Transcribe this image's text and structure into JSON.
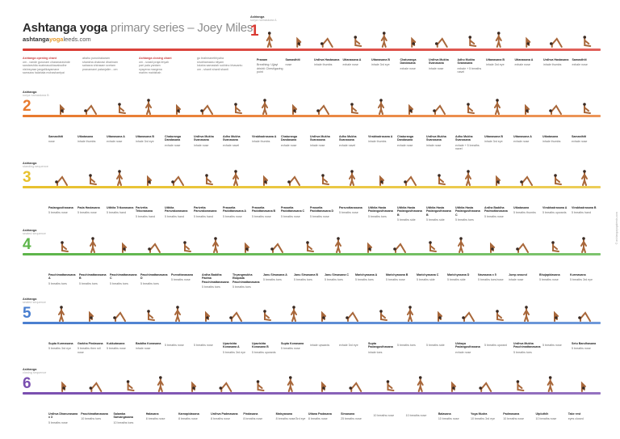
{
  "header": {
    "title_main": "Ashtanga yoga ",
    "title_accent": "primary series – Joey Miles",
    "site_a": "ashtanga",
    "site_b": "yoga",
    "site_c": "leeds.com"
  },
  "chants": [
    {
      "title": "Ashtanga opening chant",
      "lines": [
        "om - vande gurunam charanaravinde",
        "sandarshita svatmasukhavabodhe",
        "nishreyase jangalikayamane",
        "samsara halahala mohashantyai"
      ]
    },
    {
      "title": "",
      "lines": [
        "abahu purushakaram",
        "shankha chakrasi dharinam",
        "sahasra shirasam svetam",
        "pranamami patanjalim - om"
      ]
    },
    {
      "title": "Ashtanga closing chant",
      "lines": [
        "om - svasti praja bhyah",
        "pari pala yantam",
        "nyayena margena",
        "mahim mahishah"
      ]
    },
    {
      "title": "",
      "lines": [
        "go brahmanebhyaha",
        "shubhamastu nityam",
        "lokaha samastah sukhino bhavantu",
        "om - shanti shanti shanti"
      ]
    }
  ],
  "sections": [
    {
      "number": "1",
      "label": "Ashtanga",
      "sub": "surya namaskara A",
      "color": "#d93a32",
      "poses": [
        {
          "name": "Pranam",
          "breath": "Breathing: Ujjayi drishti: Chest/gazing point"
        },
        {
          "name": "Samasthiti",
          "breath": "nose"
        },
        {
          "name": "Urdhva Hastasana",
          "breath": "inhale thumbs"
        },
        {
          "name": "Uttanasana A",
          "breath": "exhale nose"
        },
        {
          "name": "Uttanasana B",
          "breath": "inhale 3rd eye"
        },
        {
          "name": "Chaturanga Dandasana",
          "breath": "exhale nose"
        },
        {
          "name": "Urdhva Mukha Svanasana",
          "breath": "inhale nose"
        },
        {
          "name": "Adho Mukha Svanasana",
          "breath": "exhale + 5 breaths navel"
        },
        {
          "name": "Uttanasana B",
          "breath": "inhale 3rd eye"
        },
        {
          "name": "Uttanasana A",
          "breath": "exhale nose"
        },
        {
          "name": "Urdhva Hastasana",
          "breath": "inhale thumbs"
        },
        {
          "name": "Samasthiti",
          "breath": "exhale nose"
        }
      ]
    },
    {
      "number": "2",
      "label": "Ashtanga",
      "sub": "surya namaskara B",
      "color": "#e87a2e",
      "poses": [
        {
          "name": "Samasthiti",
          "breath": "nose"
        },
        {
          "name": "Utkatasana",
          "breath": "inhale thumbs"
        },
        {
          "name": "Uttanasana A",
          "breath": "exhale nose"
        },
        {
          "name": "Uttanasana B",
          "breath": "inhale 3rd eye"
        },
        {
          "name": "Chaturanga Dandasana",
          "breath": "exhale nose"
        },
        {
          "name": "Urdhva Mukha Svanasana",
          "breath": "inhale nose"
        },
        {
          "name": "Adho Mukha Svanasana",
          "breath": "exhale navel"
        },
        {
          "name": "Virabhadrasana A",
          "breath": "inhale thumbs"
        },
        {
          "name": "Chaturanga Dandasana",
          "breath": "exhale nose"
        },
        {
          "name": "Urdhva Mukha Svanasana",
          "breath": "inhale nose"
        },
        {
          "name": "Adho Mukha Svanasana",
          "breath": "exhale navel"
        },
        {
          "name": "Virabhadrasana A",
          "breath": "inhale thumbs"
        },
        {
          "name": "Chaturanga Dandasana",
          "breath": "exhale nose"
        },
        {
          "name": "Urdhva Mukha Svanasana",
          "breath": "inhale nose"
        },
        {
          "name": "Adho Mukha Svanasana",
          "breath": "exhale + 5 breaths navel"
        },
        {
          "name": "Uttanasana B",
          "breath": "inhale 3rd eye"
        },
        {
          "name": "Uttanasana A",
          "breath": "exhale nose"
        },
        {
          "name": "Utkatasana",
          "breath": "inhale thumbs"
        },
        {
          "name": "Samasthiti",
          "breath": "exhale nose"
        }
      ]
    },
    {
      "number": "3",
      "label": "Ashtanga",
      "sub": "standing sequence",
      "color": "#e8c12e",
      "poses": [
        {
          "name": "Padangusthasana",
          "breath": "5 breaths nose"
        },
        {
          "name": "Pada Hastasana",
          "breath": "5 breaths nose"
        },
        {
          "name": "Utthita Trikonasana",
          "breath": "5 breaths hand"
        },
        {
          "name": "Parivrtta Trikonasana",
          "breath": "5 breaths hand"
        },
        {
          "name": "Utthita Parsvakonasana",
          "breath": "5 breaths hand"
        },
        {
          "name": "Parivrtta Parsvakonasana",
          "breath": "5 breaths hand"
        },
        {
          "name": "Prasarita Padottanasana A",
          "breath": "5 breaths nose"
        },
        {
          "name": "Prasarita Padottanasana B",
          "breath": "5 breaths nose"
        },
        {
          "name": "Prasarita Padottanasana C",
          "breath": "5 breaths nose"
        },
        {
          "name": "Prasarita Padottanasana D",
          "breath": "5 breaths nose"
        },
        {
          "name": "Parsvottanasana",
          "breath": "5 breaths nose"
        },
        {
          "name": "Utthita Hasta Padangusthasana",
          "breath": "5 breaths toes"
        },
        {
          "name": "Utthita Hasta Padangusthasana B",
          "breath": "5 breaths side"
        },
        {
          "name": "Utthita Hasta Padangusthasana B",
          "breath": "5 breaths side"
        },
        {
          "name": "Utthita Hasta Padangusthasana C",
          "breath": "5 breaths toes"
        },
        {
          "name": "Ardha Baddha Padmottanasana",
          "breath": "5 breaths nose"
        },
        {
          "name": "Utkatasana",
          "breath": "5 breaths thumbs"
        },
        {
          "name": "Virabhadrasana A",
          "breath": "5 breaths upwards"
        },
        {
          "name": "Virabhadrasana B",
          "breath": "5 breaths hand"
        }
      ]
    },
    {
      "number": "4",
      "label": "Ashtanga",
      "sub": "seated sequence",
      "color": "#5db54a",
      "poses": [
        {
          "name": "Paschimattanasana A",
          "breath": "5 breaths toes"
        },
        {
          "name": "Paschimattanasana B",
          "breath": "5 breaths toes"
        },
        {
          "name": "Paschimattanasana C",
          "breath": "5 breaths toes"
        },
        {
          "name": "Paschimattanasana D",
          "breath": "5 breaths toes"
        },
        {
          "name": "Purvottanasana",
          "breath": "5 breaths nose"
        },
        {
          "name": "Ardha Baddha Padma Paschimattanasana",
          "breath": "5 breaths toes"
        },
        {
          "name": "Tiryangmukha Ekapada Paschimattanasana",
          "breath": "5 breaths toes"
        },
        {
          "name": "Janu Sirsasana A",
          "breath": "5 breaths toes"
        },
        {
          "name": "Janu Sirsasana B",
          "breath": "5 breaths toes"
        },
        {
          "name": "Janu Sirsasana C",
          "breath": "5 breaths toes"
        },
        {
          "name": "Marichyasana A",
          "breath": "5 breaths toes"
        },
        {
          "name": "Marichyasana B",
          "breath": "5 breaths nose"
        },
        {
          "name": "Marichyasana C",
          "breath": "5 breaths side"
        },
        {
          "name": "Marichyasana D",
          "breath": "5 breaths side"
        },
        {
          "name": "Navasana x 5",
          "breath": "5 breaths toes/nose"
        },
        {
          "name": "Jump around",
          "breath": "inhale nose"
        },
        {
          "name": "Bhujapidasana",
          "breath": "5 breaths nose"
        },
        {
          "name": "Kurmasana",
          "breath": "5 breaths 3rd eye"
        }
      ]
    },
    {
      "number": "5",
      "label": "Ashtanga",
      "sub": "seated sequence",
      "color": "#4a7fd0",
      "poses": [
        {
          "name": "Supta Kurmasana",
          "breath": "5 breaths 3rd eye"
        },
        {
          "name": "Garbha Pindasana",
          "breath": "5 breaths then roll nose"
        },
        {
          "name": "Kukkutasana",
          "breath": "5 breaths nose"
        },
        {
          "name": "Baddha Konasana",
          "breath": "inhale nose"
        },
        {
          "name": "",
          "breath": "5 breaths nose"
        },
        {
          "name": "",
          "breath": "5 breaths nose"
        },
        {
          "name": "Upavishta Konasana A",
          "breath": "5 breaths 3rd eye"
        },
        {
          "name": "Upavishta Konasana B",
          "breath": "5 breaths upwards"
        },
        {
          "name": "Supta Konasana",
          "breath": "5 breaths nose"
        },
        {
          "name": "",
          "breath": "inhale upwards"
        },
        {
          "name": "",
          "breath": "exhale 3rd eye"
        },
        {
          "name": "Supta Padangusthasana",
          "breath": "inhale toes"
        },
        {
          "name": "",
          "breath": "5 breaths toes"
        },
        {
          "name": "",
          "breath": "5 breaths side"
        },
        {
          "name": "Ubhaya Padangusthasana",
          "breath": "exhale nose"
        },
        {
          "name": "",
          "breath": "5 breaths upward"
        },
        {
          "name": "Urdhva Mukha Paschimattanasana",
          "breath": "5 breaths toes"
        },
        {
          "name": "",
          "breath": "5 breaths nose"
        },
        {
          "name": "Setu Bandhasana",
          "breath": "5 breaths nose"
        }
      ]
    },
    {
      "number": "6",
      "label": "Ashtanga",
      "sub": "closing sequence",
      "color": "#7a4fb0",
      "poses": [
        {
          "name": "Urdhva Dhanurasana x 3",
          "breath": "5 breaths nose"
        },
        {
          "name": "Paschimattanasana",
          "breath": "10 breaths toes"
        },
        {
          "name": "Salamba Sarvangasana",
          "breath": "10 breaths toes"
        },
        {
          "name": "Halasana",
          "breath": "8 breaths nose"
        },
        {
          "name": "Karnapidasana",
          "breath": "8 breaths nose"
        },
        {
          "name": "Urdhva Padmasana",
          "breath": "8 breaths nose"
        },
        {
          "name": "Pindasana",
          "breath": "8 breaths nose"
        },
        {
          "name": "Matsyasana",
          "breath": "8 breaths nose/3rd eye"
        },
        {
          "name": "Uttana Padasana",
          "breath": "8 breaths nose"
        },
        {
          "name": "Sirsasana",
          "breath": "25 breaths nose"
        },
        {
          "name": "",
          "breath": "10 breaths nose"
        },
        {
          "name": "",
          "breath": "10 breaths nose"
        },
        {
          "name": "Balasana",
          "breath": "10 breaths nose"
        },
        {
          "name": "Yoga Mudra",
          "breath": "10 breaths 3rd eye"
        },
        {
          "name": "Padmasana",
          "breath": "10 breaths nose"
        },
        {
          "name": "Utpluthih",
          "breath": "10 breaths nose"
        },
        {
          "name": "Take rest",
          "breath": "eyes closed"
        }
      ]
    }
  ],
  "side_note": "© ashtangayogaleeds.com"
}
